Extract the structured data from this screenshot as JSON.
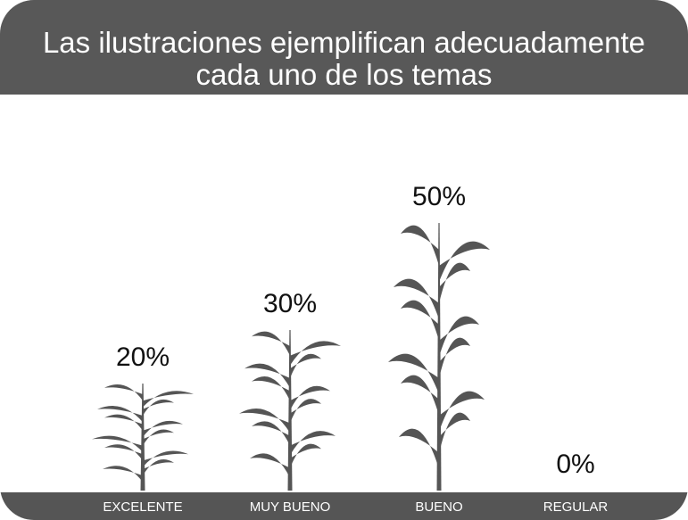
{
  "chart_data": {
    "type": "pictograph",
    "title": "Las ilustraciones ejemplifican adecuadamente cada uno de los temas",
    "categories": [
      "EXCELENTE",
      "MUY BUENO",
      "BUENO",
      "REGULAR"
    ],
    "values": [
      20,
      30,
      50,
      0
    ],
    "value_labels": [
      "20%",
      "30%",
      "50%",
      "0%"
    ],
    "color": "#555555",
    "ylim": [
      0,
      50
    ]
  }
}
